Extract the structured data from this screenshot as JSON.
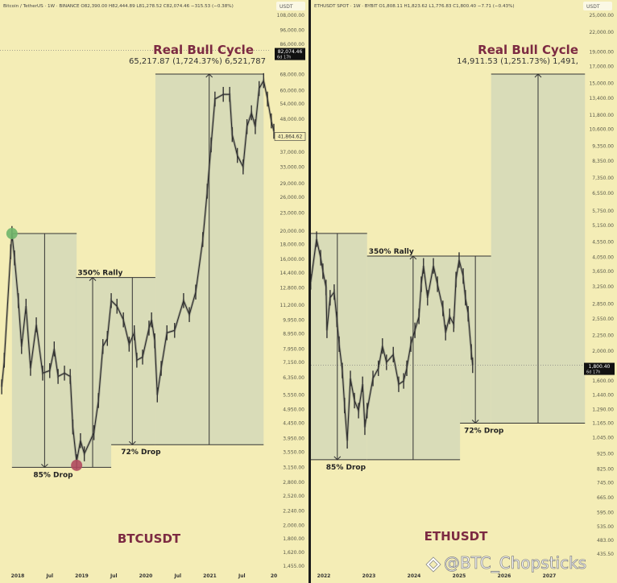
{
  "colors": {
    "background": "#f4edb6",
    "box_fill": "#d4d8b8",
    "title": "#7c2a42",
    "line": "#2a2a2a",
    "peak_marker": "#6fb56a",
    "bottom_marker": "#b04a5e"
  },
  "watermark": {
    "text": "@BTC_Chopsticks",
    "icon": "binance-logo-icon"
  },
  "chart_data": [
    {
      "type": "line",
      "header": "Bitcoin / TetherUS · 1W · BINANCE  O82,390.00  H82,444.89  L81,278.52  C82,074.46  −315.53 (−0.38%)",
      "currency": "USDT",
      "panel_title": "BTCUSDT",
      "scale": "log",
      "ylim": [
        1455,
        108000
      ],
      "y_ticks": [
        "108,000.00",
        "96,000.00",
        "86,000.00",
        "68,000.00",
        "60,000.00",
        "54,000.00",
        "48,000.00",
        "37,000.00",
        "33,000.00",
        "29,000.00",
        "26,000.00",
        "23,000.00",
        "20,000.00",
        "18,000.00",
        "16,000.00",
        "14,400.00",
        "12,800.00",
        "11,200.00",
        "9,950.00",
        "8,950.00",
        "7,950.00",
        "7,150.00",
        "6,350.00",
        "5,550.00",
        "4,950.00",
        "4,450.00",
        "3,950.00",
        "3,550.00",
        "3,150.00",
        "2,800.00",
        "2,520.00",
        "2,240.00",
        "2,000.00",
        "1,800.00",
        "1,620.00",
        "1,455.00"
      ],
      "x_ticks": [
        {
          "t": 2018,
          "label": "2018"
        },
        {
          "t": 2018.5,
          "label": "Jul"
        },
        {
          "t": 2019,
          "label": "2019"
        },
        {
          "t": 2019.5,
          "label": "Jul"
        },
        {
          "t": 2020,
          "label": "2020"
        },
        {
          "t": 2020.5,
          "label": "Jul"
        },
        {
          "t": 2021,
          "label": "2021"
        },
        {
          "t": 2021.5,
          "label": "Jul"
        },
        {
          "t": 2022,
          "label": "20"
        }
      ],
      "price_labels": [
        {
          "value": "82,074.46",
          "countdown": "6d 17h",
          "price": 82074.46,
          "style": "filled"
        },
        {
          "value": "41,864.62",
          "price": 41864.62,
          "style": "outlined"
        }
      ],
      "series": [
        [
          2017.75,
          5910
        ],
        [
          2017.79,
          7280
        ],
        [
          2017.89,
          17000
        ],
        [
          2017.91,
          19600
        ],
        [
          2017.95,
          16200
        ],
        [
          2018.01,
          11600
        ],
        [
          2018.06,
          8100
        ],
        [
          2018.13,
          11100
        ],
        [
          2018.2,
          6830
        ],
        [
          2018.29,
          9600
        ],
        [
          2018.39,
          6580
        ],
        [
          2018.5,
          6710
        ],
        [
          2018.57,
          7950
        ],
        [
          2018.63,
          6410
        ],
        [
          2018.73,
          6580
        ],
        [
          2018.82,
          6410
        ],
        [
          2018.86,
          4320
        ],
        [
          2018.92,
          3290
        ],
        [
          2018.98,
          3880
        ],
        [
          2019.04,
          3500
        ],
        [
          2019.19,
          4130
        ],
        [
          2019.26,
          5310
        ],
        [
          2019.33,
          8100
        ],
        [
          2019.4,
          8630
        ],
        [
          2019.46,
          11600
        ],
        [
          2019.55,
          11100
        ],
        [
          2019.65,
          9980
        ],
        [
          2019.74,
          8250
        ],
        [
          2019.82,
          9020
        ],
        [
          2019.86,
          7280
        ],
        [
          2019.95,
          7460
        ],
        [
          2020.05,
          9360
        ],
        [
          2020.09,
          9980
        ],
        [
          2020.14,
          8470
        ],
        [
          2020.18,
          5550
        ],
        [
          2020.24,
          6830
        ],
        [
          2020.33,
          9020
        ],
        [
          2020.45,
          9190
        ],
        [
          2020.59,
          11600
        ],
        [
          2020.68,
          10400
        ],
        [
          2020.78,
          12400
        ],
        [
          2020.89,
          18700
        ],
        [
          2020.96,
          27300
        ],
        [
          2021.02,
          39200
        ],
        [
          2021.08,
          56100
        ],
        [
          2021.21,
          58200
        ],
        [
          2021.31,
          58200
        ],
        [
          2021.35,
          42500
        ],
        [
          2021.43,
          36100
        ],
        [
          2021.52,
          33000
        ],
        [
          2021.58,
          45200
        ],
        [
          2021.65,
          50400
        ],
        [
          2021.71,
          45200
        ],
        [
          2021.77,
          60900
        ],
        [
          2021.84,
          64800
        ],
        [
          2021.9,
          56100
        ],
        [
          2021.96,
          47300
        ],
        [
          2022.0,
          43600
        ]
      ],
      "markers": [
        {
          "t": 2017.91,
          "price": 19600,
          "kind": "peak"
        },
        {
          "t": 2018.92,
          "price": 3200,
          "kind": "bottom"
        }
      ],
      "annotations": [
        {
          "label": "85% Drop",
          "t0": 2017.91,
          "t1": 2018.92,
          "p_top": 19600,
          "p_bottom": 3150,
          "arrow_t": 2018.42,
          "direction": "down",
          "label_pos": "bottom"
        },
        {
          "label": "350% Rally",
          "t0": 2018.91,
          "t1": 2019.46,
          "p_top": 13900,
          "p_bottom": 3150,
          "arrow_t": 2019.17,
          "direction": "up",
          "label_pos": "top"
        },
        {
          "label": "72% Drop",
          "t0": 2019.46,
          "t1": 2020.15,
          "p_top": 13900,
          "p_bottom": 3760,
          "arrow_t": 2019.79,
          "direction": "down",
          "label_pos": "bottom"
        },
        {
          "label": "",
          "t0": 2020.15,
          "t1": 2021.84,
          "p_top": 68200,
          "p_bottom": 3760,
          "arrow_t": 2020.99,
          "direction": "up",
          "label_pos": "none"
        }
      ],
      "cycle_title": "Real Bull Cycle",
      "cycle_stats": "65,217.87 (1,724.37%) 6,521,787"
    },
    {
      "type": "line",
      "header": "ETHUSDT SPOT · 1W · BYBIT  O1,808.11  H1,823.62  L1,776.83  C1,800.40  −7.71 (−0.43%)",
      "currency": "USDT",
      "panel_title": "ETHUSDT",
      "scale": "log",
      "ylim": [
        435.5,
        25000
      ],
      "y_ticks": [
        "25,000.00",
        "22,000.00",
        "19,000.00",
        "17,000.00",
        "15,000.00",
        "13,400.00",
        "11,800.00",
        "10,600.00",
        "9,350.00",
        "8,350.00",
        "7,350.00",
        "6,550.00",
        "5,750.00",
        "5,150.00",
        "4,550.00",
        "4,050.00",
        "3,650.00",
        "3,250.00",
        "2,850.00",
        "2,550.00",
        "2,250.00",
        "2,000.00",
        "1,600.00",
        "1,440.00",
        "1,290.00",
        "1,165.00",
        "1,045.00",
        "925.00",
        "825.00",
        "745.00",
        "665.00",
        "595.00",
        "535.00",
        "483.00",
        "435.50"
      ],
      "x_ticks": [
        {
          "t": 2022,
          "label": "2022"
        },
        {
          "t": 2023,
          "label": "2023"
        },
        {
          "t": 2024,
          "label": "2024"
        },
        {
          "t": 2025,
          "label": "2025"
        },
        {
          "t": 2026,
          "label": "2026"
        },
        {
          "t": 2027,
          "label": "2027"
        }
      ],
      "price_labels": [
        {
          "value": "1,800.40",
          "countdown": "6d 17h",
          "price": 1800.4,
          "style": "filled"
        }
      ],
      "series": [
        [
          2021.71,
          3370
        ],
        [
          2021.84,
          4645
        ],
        [
          2021.93,
          4040
        ],
        [
          2021.98,
          3650
        ],
        [
          2022.05,
          3230
        ],
        [
          2022.07,
          2340
        ],
        [
          2022.14,
          2990
        ],
        [
          2022.23,
          3120
        ],
        [
          2022.29,
          2540
        ],
        [
          2022.34,
          2110
        ],
        [
          2022.41,
          1730
        ],
        [
          2022.46,
          1330
        ],
        [
          2022.52,
          1020
        ],
        [
          2022.59,
          1630
        ],
        [
          2022.68,
          1380
        ],
        [
          2022.77,
          1280
        ],
        [
          2022.86,
          1560
        ],
        [
          2022.91,
          1130
        ],
        [
          2022.96,
          1280
        ],
        [
          2023.09,
          1630
        ],
        [
          2023.21,
          1760
        ],
        [
          2023.3,
          2080
        ],
        [
          2023.39,
          1840
        ],
        [
          2023.54,
          1950
        ],
        [
          2023.66,
          1560
        ],
        [
          2023.77,
          1600
        ],
        [
          2023.84,
          1760
        ],
        [
          2023.93,
          2110
        ],
        [
          2024.02,
          2340
        ],
        [
          2024.11,
          2600
        ],
        [
          2024.16,
          3310
        ],
        [
          2024.21,
          3800
        ],
        [
          2024.3,
          2990
        ],
        [
          2024.43,
          3800
        ],
        [
          2024.52,
          3310
        ],
        [
          2024.64,
          2760
        ],
        [
          2024.7,
          2300
        ],
        [
          2024.79,
          2600
        ],
        [
          2024.88,
          2450
        ],
        [
          2024.93,
          3430
        ],
        [
          2025.0,
          3970
        ],
        [
          2025.09,
          3520
        ],
        [
          2025.14,
          2990
        ],
        [
          2025.2,
          2650
        ],
        [
          2025.27,
          1990
        ],
        [
          2025.3,
          1800
        ]
      ],
      "markers": [],
      "annotations": [
        {
          "label": "85% Drop",
          "t0": 2021.71,
          "t1": 2022.96,
          "p_top": 4850,
          "p_bottom": 885,
          "arrow_t": 2022.3,
          "direction": "down",
          "label_pos": "bottom"
        },
        {
          "label": "350% Rally",
          "t0": 2022.96,
          "t1": 2025.02,
          "p_top": 4090,
          "p_bottom": 885,
          "arrow_t": 2023.98,
          "direction": "up",
          "label_pos": "top"
        },
        {
          "label": "72% Drop",
          "t0": 2025.02,
          "t1": 2025.71,
          "p_top": 4090,
          "p_bottom": 1165,
          "arrow_t": 2025.36,
          "direction": "down",
          "label_pos": "bottom"
        },
        {
          "label": "",
          "t0": 2025.71,
          "t1": 2027.79,
          "p_top": 16070,
          "p_bottom": 1165,
          "arrow_t": 2026.75,
          "direction": "up",
          "label_pos": "none"
        }
      ],
      "cycle_title": "Real Bull Cycle",
      "cycle_stats": "14,911.53 (1,251.73%) 1,491,"
    }
  ]
}
